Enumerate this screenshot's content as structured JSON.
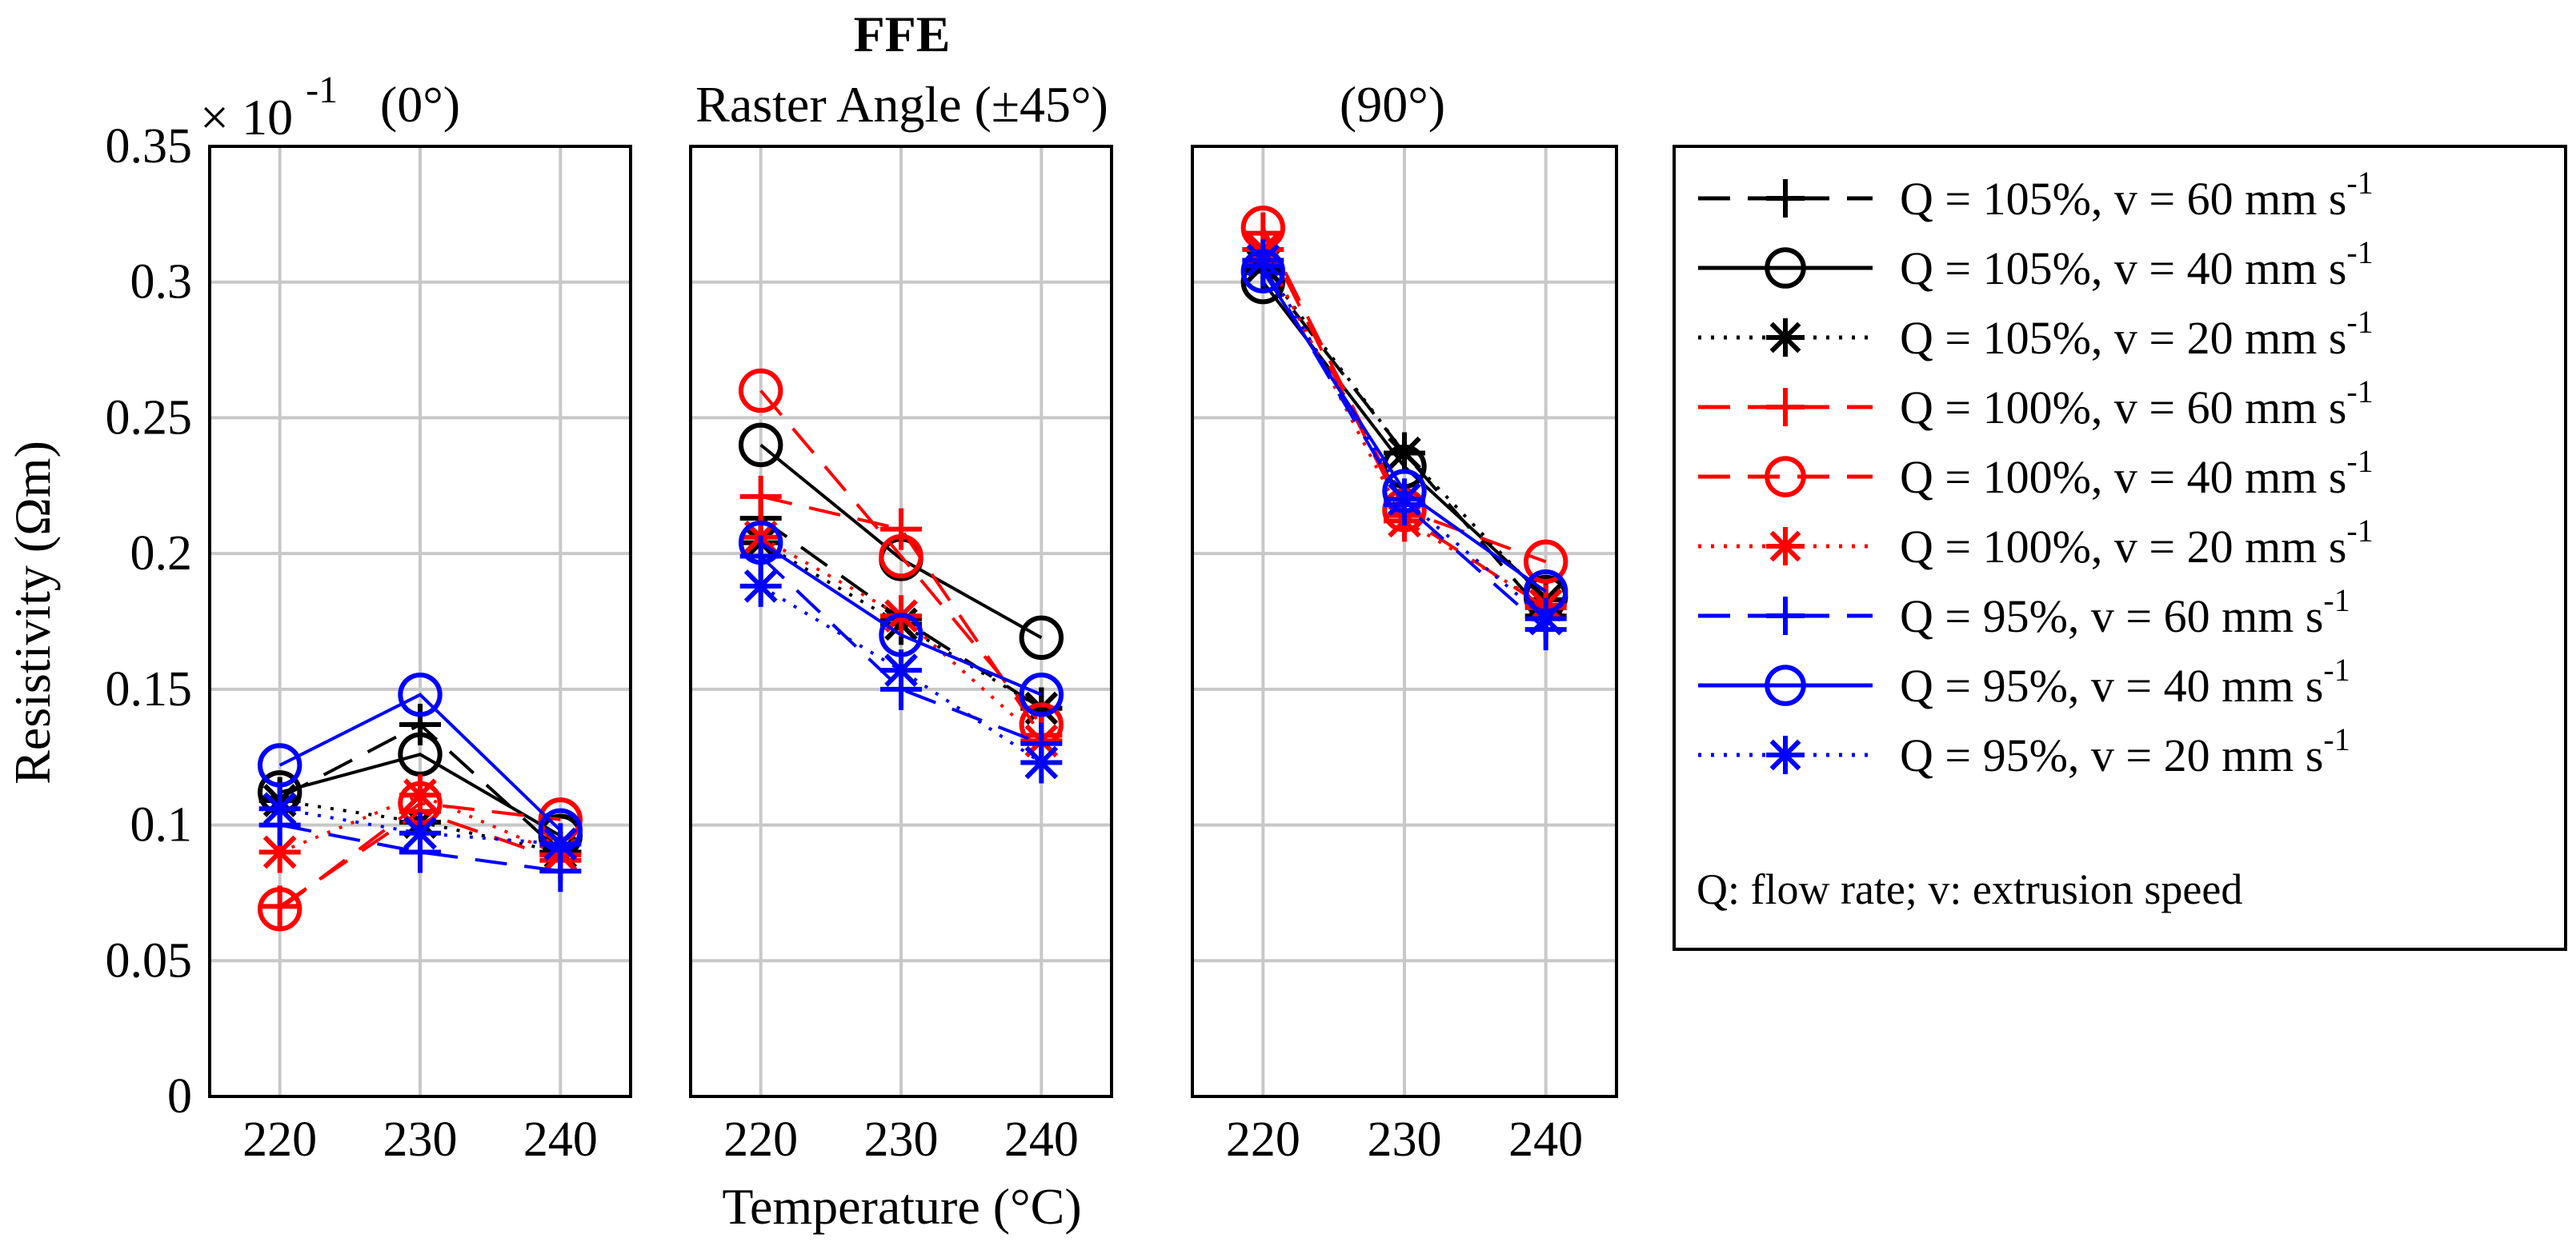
{
  "title": "FFE",
  "subtitle": "Raster Angle (±45°)",
  "xlabel": "Temperature (°C)",
  "ylabel": "Resistivity (Ωm)",
  "exponent": {
    "base": "× 10",
    "power": "-1"
  },
  "colors": {
    "black": "#000000",
    "red": "#ff0000",
    "blue": "#0000ff",
    "grid": "#c8c8c8"
  },
  "legend": {
    "footer": "Q: flow rate; v: extrusion speed",
    "entries": [
      {
        "label": "Q = 105%, v = 60 mm s",
        "sup": "-1"
      },
      {
        "label": "Q = 105%, v = 40 mm s",
        "sup": "-1"
      },
      {
        "label": "Q = 105%, v = 20 mm s",
        "sup": "-1"
      },
      {
        "label": "Q = 100%, v = 60 mm s",
        "sup": "-1"
      },
      {
        "label": "Q = 100%, v = 40 mm s",
        "sup": "-1"
      },
      {
        "label": "Q = 100%, v = 20 mm s",
        "sup": "-1"
      },
      {
        "label": "Q = 95%, v = 60 mm s",
        "sup": "-1"
      },
      {
        "label": "Q = 95%, v = 40 mm s",
        "sup": "-1"
      },
      {
        "label": "Q = 95%, v = 20 mm s",
        "sup": "-1"
      }
    ]
  },
  "chart_data": {
    "type": "line",
    "x": [
      220,
      230,
      240
    ],
    "x_tick_labels": [
      "220",
      "230",
      "240"
    ],
    "ylim": [
      0,
      0.35
    ],
    "y_ticks": [
      0,
      0.05,
      0.1,
      0.15,
      0.2,
      0.25,
      0.3,
      0.35
    ],
    "y_tick_labels": [
      "0",
      "0.05",
      "0.1",
      "0.15",
      "0.2",
      "0.25",
      "0.3",
      "0.35"
    ],
    "y_scale_note": "×10^-1",
    "grid": true,
    "legend_position": "right",
    "series_styles": [
      {
        "name": "Q = 105%, v = 60 mm s-1",
        "color": "black",
        "dash": "long-dash",
        "marker": "plus"
      },
      {
        "name": "Q = 105%, v = 40 mm s-1",
        "color": "black",
        "dash": "solid",
        "marker": "circle"
      },
      {
        "name": "Q = 105%, v = 20 mm s-1",
        "color": "black",
        "dash": "dotted",
        "marker": "asterisk"
      },
      {
        "name": "Q = 100%, v = 60 mm s-1",
        "color": "red",
        "dash": "long-dash",
        "marker": "plus"
      },
      {
        "name": "Q = 100%, v = 40 mm s-1",
        "color": "red",
        "dash": "long-dash",
        "marker": "circle"
      },
      {
        "name": "Q = 100%, v = 20 mm s-1",
        "color": "red",
        "dash": "dotted",
        "marker": "asterisk"
      },
      {
        "name": "Q = 95%, v = 60 mm s-1",
        "color": "blue",
        "dash": "long-dash",
        "marker": "plus"
      },
      {
        "name": "Q = 95%, v = 40 mm s-1",
        "color": "blue",
        "dash": "solid",
        "marker": "circle"
      },
      {
        "name": "Q = 95%, v = 20 mm s-1",
        "color": "blue",
        "dash": "dotted",
        "marker": "asterisk"
      }
    ],
    "panels": [
      {
        "title": "(0°)",
        "series": [
          [
            0.11,
            0.137,
            0.09
          ],
          [
            0.112,
            0.126,
            0.096
          ],
          [
            0.109,
            0.101,
            0.09
          ],
          [
            0.07,
            0.105,
            0.087
          ],
          [
            0.069,
            0.108,
            0.102
          ],
          [
            0.09,
            0.111,
            0.089
          ],
          [
            0.1,
            0.09,
            0.083
          ],
          [
            0.122,
            0.148,
            0.098
          ],
          [
            0.106,
            0.097,
            0.093
          ]
        ]
      },
      {
        "title": "(90°)",
        "series": [
          [
            0.304,
            0.237,
            0.177
          ],
          [
            0.3,
            0.232,
            0.184
          ],
          [
            0.306,
            0.237,
            0.183
          ],
          [
            0.318,
            0.214,
            0.18
          ],
          [
            0.32,
            0.216,
            0.197
          ],
          [
            0.312,
            0.212,
            0.181
          ],
          [
            0.306,
            0.218,
            0.172
          ],
          [
            0.304,
            0.223,
            0.186
          ],
          [
            0.308,
            0.22,
            0.176
          ]
        ]
      },
      {
        "title": "",
        "series": [
          [
            0.213,
            0.176,
            0.143
          ],
          [
            0.24,
            0.198,
            0.169
          ],
          [
            0.204,
            0.174,
            0.143
          ],
          [
            0.221,
            0.209,
            0.133
          ],
          [
            0.26,
            0.199,
            0.137
          ],
          [
            0.206,
            0.177,
            0.131
          ],
          [
            0.199,
            0.15,
            0.13
          ],
          [
            0.204,
            0.17,
            0.148
          ],
          [
            0.188,
            0.157,
            0.123
          ]
        ]
      }
    ]
  }
}
